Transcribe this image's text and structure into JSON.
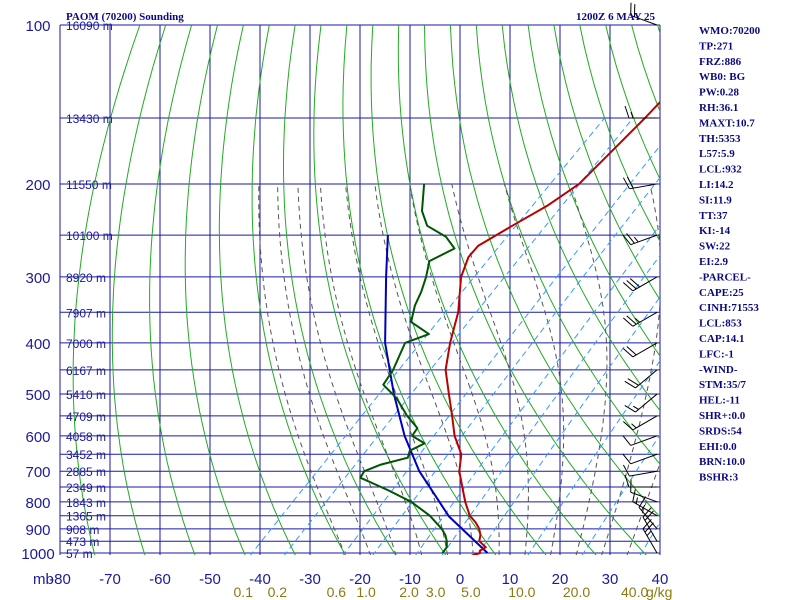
{
  "header": {
    "station": "PAOM (70200) Sounding",
    "time": "1200Z  6 MAY 25"
  },
  "chart_data": {
    "type": "skew-t",
    "pressure_unit": "mb",
    "mixing_unit": "g/kg",
    "pressure_ticks": [
      {
        "p": 100,
        "label": "100"
      },
      {
        "p": 200,
        "label": "200"
      },
      {
        "p": 300,
        "label": "300"
      },
      {
        "p": 400,
        "label": "400"
      },
      {
        "p": 500,
        "label": "500"
      },
      {
        "p": 600,
        "label": "600"
      },
      {
        "p": 700,
        "label": "700"
      },
      {
        "p": 800,
        "label": "800"
      },
      {
        "p": 900,
        "label": "900"
      },
      {
        "p": 1000,
        "label": "1000"
      }
    ],
    "temp_ticks": [
      {
        "t": -80,
        "label": "-80"
      },
      {
        "t": -70,
        "label": "-70"
      },
      {
        "t": -60,
        "label": "-60"
      },
      {
        "t": -50,
        "label": "-50"
      },
      {
        "t": -40,
        "label": "-40"
      },
      {
        "t": -30,
        "label": "-30"
      },
      {
        "t": -20,
        "label": "-20"
      },
      {
        "t": -10,
        "label": "-10"
      },
      {
        "t": 0,
        "label": "0"
      },
      {
        "t": 10,
        "label": "10"
      },
      {
        "t": 20,
        "label": "20"
      },
      {
        "t": 30,
        "label": "30"
      },
      {
        "t": 40,
        "label": "40"
      }
    ],
    "height_labels": [
      {
        "p": 100,
        "label": "16090 m"
      },
      {
        "p": 150,
        "label": "13430 m"
      },
      {
        "p": 200,
        "label": "11550 m"
      },
      {
        "p": 250,
        "label": "10100 m"
      },
      {
        "p": 300,
        "label": "8920 m"
      },
      {
        "p": 350,
        "label": "7907 m"
      },
      {
        "p": 400,
        "label": "7000 m"
      },
      {
        "p": 450,
        "label": "6167 m"
      },
      {
        "p": 500,
        "label": "5410 m"
      },
      {
        "p": 550,
        "label": "4709 m"
      },
      {
        "p": 600,
        "label": "4058 m"
      },
      {
        "p": 650,
        "label": "3452 m"
      },
      {
        "p": 700,
        "label": "2885 m"
      },
      {
        "p": 750,
        "label": "2349 m"
      },
      {
        "p": 800,
        "label": "1843 m"
      },
      {
        "p": 850,
        "label": "1365 m"
      },
      {
        "p": 900,
        "label": "908 m"
      },
      {
        "p": 950,
        "label": "473 m"
      },
      {
        "p": 1000,
        "label": "57 m"
      }
    ],
    "mixing_ratio_labels": [
      {
        "w": 0.1,
        "label": "0.1"
      },
      {
        "w": 0.2,
        "label": "0.2"
      },
      {
        "w": 0.6,
        "label": "0.6"
      },
      {
        "w": 1.0,
        "label": "1.0"
      },
      {
        "w": 2.0,
        "label": "2.0"
      },
      {
        "w": 3.0,
        "label": "3.0"
      },
      {
        "w": 5.0,
        "label": "5.0"
      },
      {
        "w": 10.0,
        "label": "10.0"
      },
      {
        "w": 20.0,
        "label": "20.0"
      },
      {
        "w": 40.0,
        "label": "40.0"
      }
    ],
    "temperature_profile": [
      {
        "p": 1015,
        "t": 2.6
      },
      {
        "p": 1000,
        "t": 4.0
      },
      {
        "p": 990,
        "t": 3.5
      },
      {
        "p": 975,
        "t": 4.0
      },
      {
        "p": 950,
        "t": 1.5
      },
      {
        "p": 925,
        "t": 0.5
      },
      {
        "p": 900,
        "t": -1.0
      },
      {
        "p": 875,
        "t": -3.0
      },
      {
        "p": 850,
        "t": -5.5
      },
      {
        "p": 800,
        "t": -9.2
      },
      {
        "p": 760,
        "t": -12.0
      },
      {
        "p": 700,
        "t": -16.5
      },
      {
        "p": 650,
        "t": -19.5
      },
      {
        "p": 600,
        "t": -24.5
      },
      {
        "p": 550,
        "t": -29.0
      },
      {
        "p": 500,
        "t": -34.0
      },
      {
        "p": 450,
        "t": -39.5
      },
      {
        "p": 400,
        "t": -44.0
      },
      {
        "p": 350,
        "t": -48.5
      },
      {
        "p": 300,
        "t": -55.0
      },
      {
        "p": 275,
        "t": -57.5
      },
      {
        "p": 262,
        "t": -57.8
      },
      {
        "p": 240,
        "t": -55.0
      },
      {
        "p": 220,
        "t": -52.0
      },
      {
        "p": 200,
        "t": -50.0
      },
      {
        "p": 150,
        "t": -50.0
      },
      {
        "p": 100,
        "t": -51.0
      }
    ],
    "dewpoint_profile": [
      {
        "p": 1000,
        "t": -3.5
      },
      {
        "p": 975,
        "t": -3.8
      },
      {
        "p": 950,
        "t": -5.0
      },
      {
        "p": 925,
        "t": -6.5
      },
      {
        "p": 900,
        "t": -8.5
      },
      {
        "p": 850,
        "t": -13.5
      },
      {
        "p": 800,
        "t": -20.0
      },
      {
        "p": 760,
        "t": -27.0
      },
      {
        "p": 720,
        "t": -35.0
      },
      {
        "p": 700,
        "t": -35.5
      },
      {
        "p": 680,
        "t": -33.5
      },
      {
        "p": 660,
        "t": -29.5
      },
      {
        "p": 640,
        "t": -30.5
      },
      {
        "p": 620,
        "t": -29.0
      },
      {
        "p": 600,
        "t": -33.0
      },
      {
        "p": 580,
        "t": -33.5
      },
      {
        "p": 550,
        "t": -38.0
      },
      {
        "p": 510,
        "t": -43.5
      },
      {
        "p": 480,
        "t": -49.0
      },
      {
        "p": 450,
        "t": -50.0
      },
      {
        "p": 400,
        "t": -53.0
      },
      {
        "p": 385,
        "t": -50.0
      },
      {
        "p": 365,
        "t": -56.0
      },
      {
        "p": 340,
        "t": -58.5
      },
      {
        "p": 320,
        "t": -60.0
      },
      {
        "p": 300,
        "t": -62.0
      },
      {
        "p": 280,
        "t": -64.5
      },
      {
        "p": 265,
        "t": -62.0
      },
      {
        "p": 252,
        "t": -66.0
      },
      {
        "p": 240,
        "t": -72.0
      },
      {
        "p": 225,
        "t": -76.0
      },
      {
        "p": 200,
        "t": -81.0
      }
    ],
    "parcel_profile": [
      {
        "p": 1000,
        "t": 5.5
      },
      {
        "p": 853,
        "t": -9.5
      },
      {
        "p": 700,
        "t": -24.5
      },
      {
        "p": 600,
        "t": -34.5
      },
      {
        "p": 500,
        "t": -45.0
      },
      {
        "p": 400,
        "t": -57.0
      },
      {
        "p": 300,
        "t": -70.0
      },
      {
        "p": 250,
        "t": -78.0
      }
    ],
    "wind_barbs": [
      {
        "p": 1000,
        "dir": 330,
        "spd": 25
      },
      {
        "p": 950,
        "dir": 330,
        "spd": 20
      },
      {
        "p": 900,
        "dir": 320,
        "spd": 15
      },
      {
        "p": 850,
        "dir": 300,
        "spd": 15
      },
      {
        "p": 800,
        "dir": 290,
        "spd": 10
      },
      {
        "p": 750,
        "dir": 270,
        "spd": 10
      },
      {
        "p": 700,
        "dir": 260,
        "spd": 10
      },
      {
        "p": 650,
        "dir": 250,
        "spd": 10
      },
      {
        "p": 600,
        "dir": 250,
        "spd": 10
      },
      {
        "p": 550,
        "dir": 240,
        "spd": 15
      },
      {
        "p": 500,
        "dir": 230,
        "spd": 15
      },
      {
        "p": 450,
        "dir": 230,
        "spd": 20
      },
      {
        "p": 400,
        "dir": 240,
        "spd": 20
      },
      {
        "p": 350,
        "dir": 240,
        "spd": 25
      },
      {
        "p": 300,
        "dir": 240,
        "spd": 30
      },
      {
        "p": 250,
        "dir": 250,
        "spd": 25
      },
      {
        "p": 200,
        "dir": 260,
        "spd": 20
      },
      {
        "p": 150,
        "dir": 270,
        "spd": 15
      },
      {
        "p": 100,
        "dir": 290,
        "spd": 20
      }
    ],
    "grid": true
  },
  "indices": [
    "WMO:70200",
    "TP:271",
    "FRZ:886",
    "WB0: BG",
    "PW:0.28",
    "RH:36.1",
    "MAXT:10.7",
    "TH:5353",
    "L57:5.9",
    "LCL:932",
    "LI:14.2",
    "SI:11.9",
    "TT:37",
    "KI:-14",
    "SW:22",
    "EI:2.9",
    "-PARCEL-",
    "CAPE:25",
    "CINH:71553",
    "LCL:853",
    "CAP:14.1",
    "LFC:-1",
    "-WIND-",
    "STM:35/7",
    "HEL:-11",
    "SHR+:0.0",
    "SRDS:54",
    "EHI:0.0",
    "BRN:10.0",
    "BSHR:3"
  ],
  "colors": {
    "grid": "#1a1aa8",
    "dry_adiabat": "#22aa22",
    "moist_adiabat": "#555555",
    "mixing_ratio": "#3399ff",
    "temperature": "#bb0000",
    "dewpoint": "#005500",
    "parcel": "#0000bb",
    "text": "#0a0a80"
  }
}
